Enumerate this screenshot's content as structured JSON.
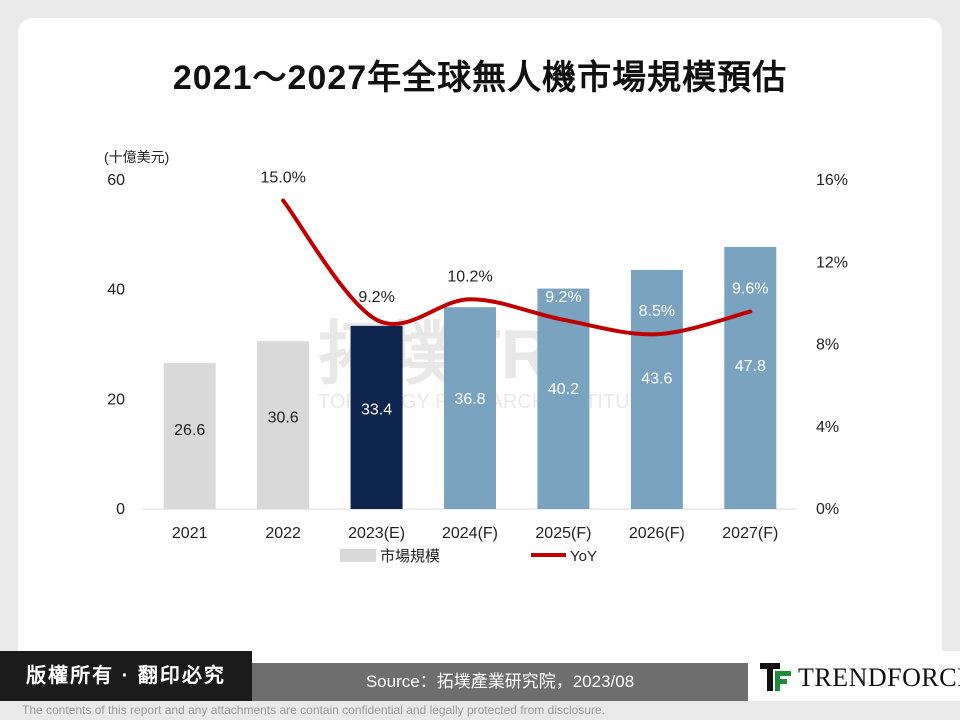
{
  "title": "2021～2027年全球無人機市場規模預估",
  "chart_data": {
    "type": "bar",
    "categories": [
      "2021",
      "2022",
      "2023(E)",
      "2024(F)",
      "2025(F)",
      "2026(F)",
      "2027(F)"
    ],
    "series": [
      {
        "name": "市場規模",
        "axis": "left",
        "values": [
          26.6,
          30.6,
          33.4,
          36.8,
          40.2,
          43.6,
          47.8
        ],
        "labels": [
          "26.6",
          "30.6",
          "33.4",
          "36.8",
          "40.2",
          "43.6",
          "47.8"
        ]
      },
      {
        "name": "YoY",
        "type": "line",
        "axis": "right",
        "values": [
          null,
          15.0,
          9.2,
          10.2,
          9.2,
          8.5,
          9.6
        ],
        "labels": [
          "",
          "15.0%",
          "9.2%",
          "10.2%",
          "9.2%",
          "8.5%",
          "9.6%"
        ]
      }
    ],
    "ylabel": "(十億美元)",
    "ylim": [
      0,
      60
    ],
    "yticks": [
      "0",
      "20",
      "40",
      "60"
    ],
    "y2lim": [
      0,
      16
    ],
    "y2ticks": [
      "0%",
      "4%",
      "8%",
      "12%",
      "16%"
    ],
    "legend": "bottom",
    "grid": false,
    "colors": {
      "actual": "#d9d9d9",
      "estimate": "#0e2550",
      "forecast": "#7aa3bf",
      "line": "#c00000"
    }
  },
  "watermark": {
    "main": "拓墣TRI",
    "sub": "TOPOLOGY RESEARCH INSTITUTE"
  },
  "footer": {
    "rights": "版權所有 · 翻印必究",
    "source": "Source：拓墣產業研究院，2023/08",
    "logo": "TRENDFORCE",
    "disclaimer": "The contents of this report and any attachments are contain confidential and legally protected from disclosure."
  }
}
